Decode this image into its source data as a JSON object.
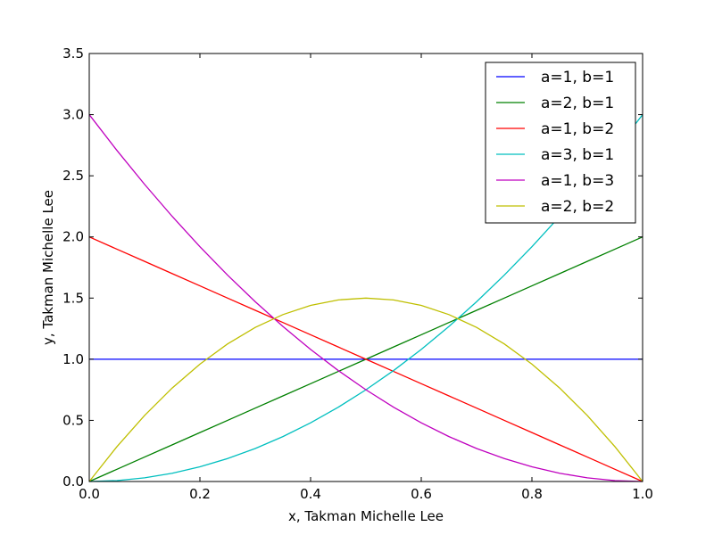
{
  "chart_data": {
    "type": "line",
    "xlabel": "x, Takman Michelle Lee",
    "ylabel": "y, Takman Michelle Lee",
    "xlim": [
      0.0,
      1.0
    ],
    "ylim": [
      0.0,
      3.5
    ],
    "x_ticks": [
      "0.0",
      "0.2",
      "0.4",
      "0.6",
      "0.8",
      "1.0"
    ],
    "y_ticks": [
      "0.0",
      "0.5",
      "1.0",
      "1.5",
      "2.0",
      "2.5",
      "3.0",
      "3.5"
    ],
    "grid": false,
    "legend_position": "top-right",
    "x": [
      0.0,
      0.05,
      0.1,
      0.15,
      0.2,
      0.25,
      0.3,
      0.35,
      0.4,
      0.45,
      0.5,
      0.55,
      0.6,
      0.65,
      0.7,
      0.75,
      0.8,
      0.85,
      0.9,
      0.95,
      1.0
    ],
    "series": [
      {
        "name": "a=1, b=1",
        "color": "#0000ff",
        "values": [
          1.0,
          1.0,
          1.0,
          1.0,
          1.0,
          1.0,
          1.0,
          1.0,
          1.0,
          1.0,
          1.0,
          1.0,
          1.0,
          1.0,
          1.0,
          1.0,
          1.0,
          1.0,
          1.0,
          1.0,
          1.0
        ]
      },
      {
        "name": "a=2, b=1",
        "color": "#008000",
        "values": [
          0.0,
          0.1,
          0.2,
          0.3,
          0.4,
          0.5,
          0.6,
          0.7,
          0.8,
          0.9,
          1.0,
          1.1,
          1.2,
          1.3,
          1.4,
          1.5,
          1.6,
          1.7,
          1.8,
          1.9,
          2.0
        ]
      },
      {
        "name": "a=1, b=2",
        "color": "#ff0000",
        "values": [
          2.0,
          1.9,
          1.8,
          1.7,
          1.6,
          1.5,
          1.4,
          1.3,
          1.2,
          1.1,
          1.0,
          0.9,
          0.8,
          0.7,
          0.6,
          0.5,
          0.4,
          0.3,
          0.2,
          0.1,
          0.0
        ]
      },
      {
        "name": "a=3, b=1",
        "color": "#00bfbf",
        "values": [
          0.0,
          0.0075,
          0.03,
          0.0675,
          0.12,
          0.1875,
          0.27,
          0.3675,
          0.48,
          0.6075,
          0.75,
          0.9075,
          1.08,
          1.2675,
          1.47,
          1.6875,
          1.92,
          2.1675,
          2.43,
          2.7075,
          3.0
        ]
      },
      {
        "name": "a=1, b=3",
        "color": "#bf00bf",
        "values": [
          3.0,
          2.7075,
          2.43,
          2.1675,
          1.92,
          1.6875,
          1.47,
          1.2675,
          1.08,
          0.9075,
          0.75,
          0.6075,
          0.48,
          0.3675,
          0.27,
          0.1875,
          0.12,
          0.0675,
          0.03,
          0.0075,
          0.0
        ]
      },
      {
        "name": "a=2, b=2",
        "color": "#bfbf00",
        "values": [
          0.0,
          0.285,
          0.54,
          0.765,
          0.96,
          1.125,
          1.26,
          1.365,
          1.44,
          1.485,
          1.5,
          1.485,
          1.44,
          1.365,
          1.26,
          1.125,
          0.96,
          0.765,
          0.54,
          0.285,
          0.0
        ]
      }
    ]
  }
}
